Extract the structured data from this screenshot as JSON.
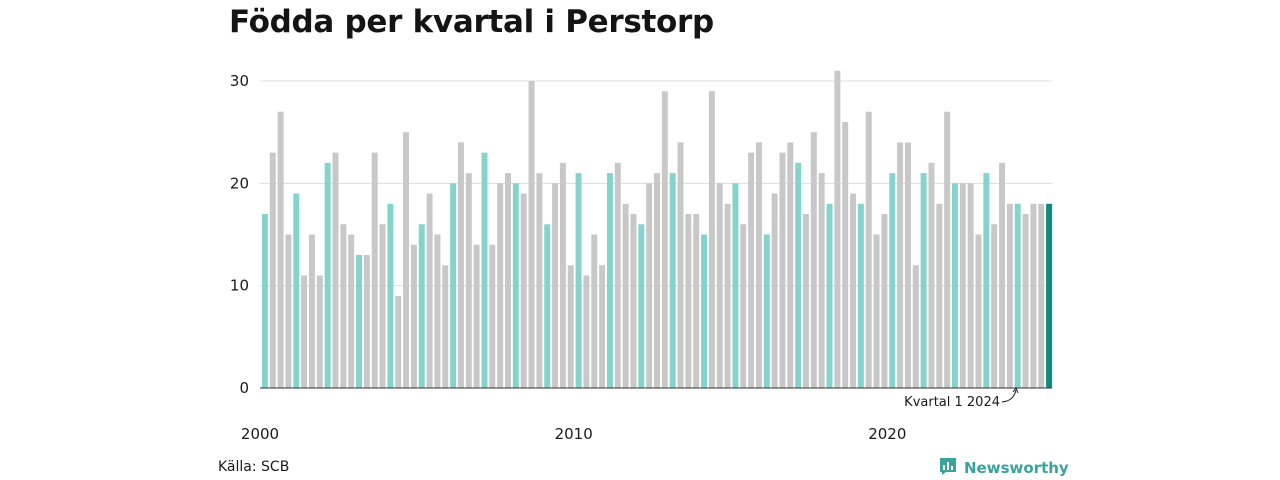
{
  "title": "Födda per kvartal i Perstorp",
  "source": "Källa: SCB",
  "brand": {
    "name": "Newsworthy",
    "icon": "newsworthy-logo-icon",
    "color": "#3aa39c"
  },
  "colors": {
    "bar_q1": "#85d4cb",
    "bar_other": "#c8c8c8",
    "bar_latest": "#0f8a7c",
    "grid": "#dddddd",
    "axis": "#333333"
  },
  "chart_data": {
    "type": "bar",
    "title": "Födda per kvartal i Perstorp",
    "xlabel": "",
    "ylabel": "",
    "ylim": [
      0,
      30
    ],
    "yticks": [
      0,
      10,
      20,
      30
    ],
    "xtick_labels": [
      "2000",
      "2010",
      "2020"
    ],
    "grid": true,
    "legend": "none",
    "start_year": 2000,
    "quarters_per_year": 4,
    "highlight": "Q1 bars in light teal, latest bar (Kvartal 1 2024) in dark teal",
    "annotation": "Kvartal 1 2024",
    "values": [
      17,
      23,
      27,
      15,
      19,
      11,
      15,
      11,
      22,
      23,
      16,
      15,
      13,
      13,
      23,
      16,
      18,
      9,
      25,
      14,
      16,
      19,
      15,
      12,
      20,
      24,
      21,
      14,
      23,
      14,
      20,
      21,
      20,
      19,
      30,
      21,
      16,
      20,
      22,
      12,
      21,
      11,
      15,
      12,
      21,
      22,
      18,
      17,
      16,
      20,
      21,
      29,
      21,
      24,
      17,
      17,
      15,
      29,
      20,
      18,
      20,
      16,
      23,
      24,
      15,
      19,
      23,
      24,
      22,
      17,
      25,
      21,
      18,
      31,
      26,
      19,
      18,
      27,
      15,
      17,
      21,
      24,
      24,
      12,
      21,
      22,
      18,
      27,
      20,
      20,
      20,
      15,
      21,
      16,
      22,
      18,
      18,
      17,
      18,
      18,
      18
    ]
  }
}
